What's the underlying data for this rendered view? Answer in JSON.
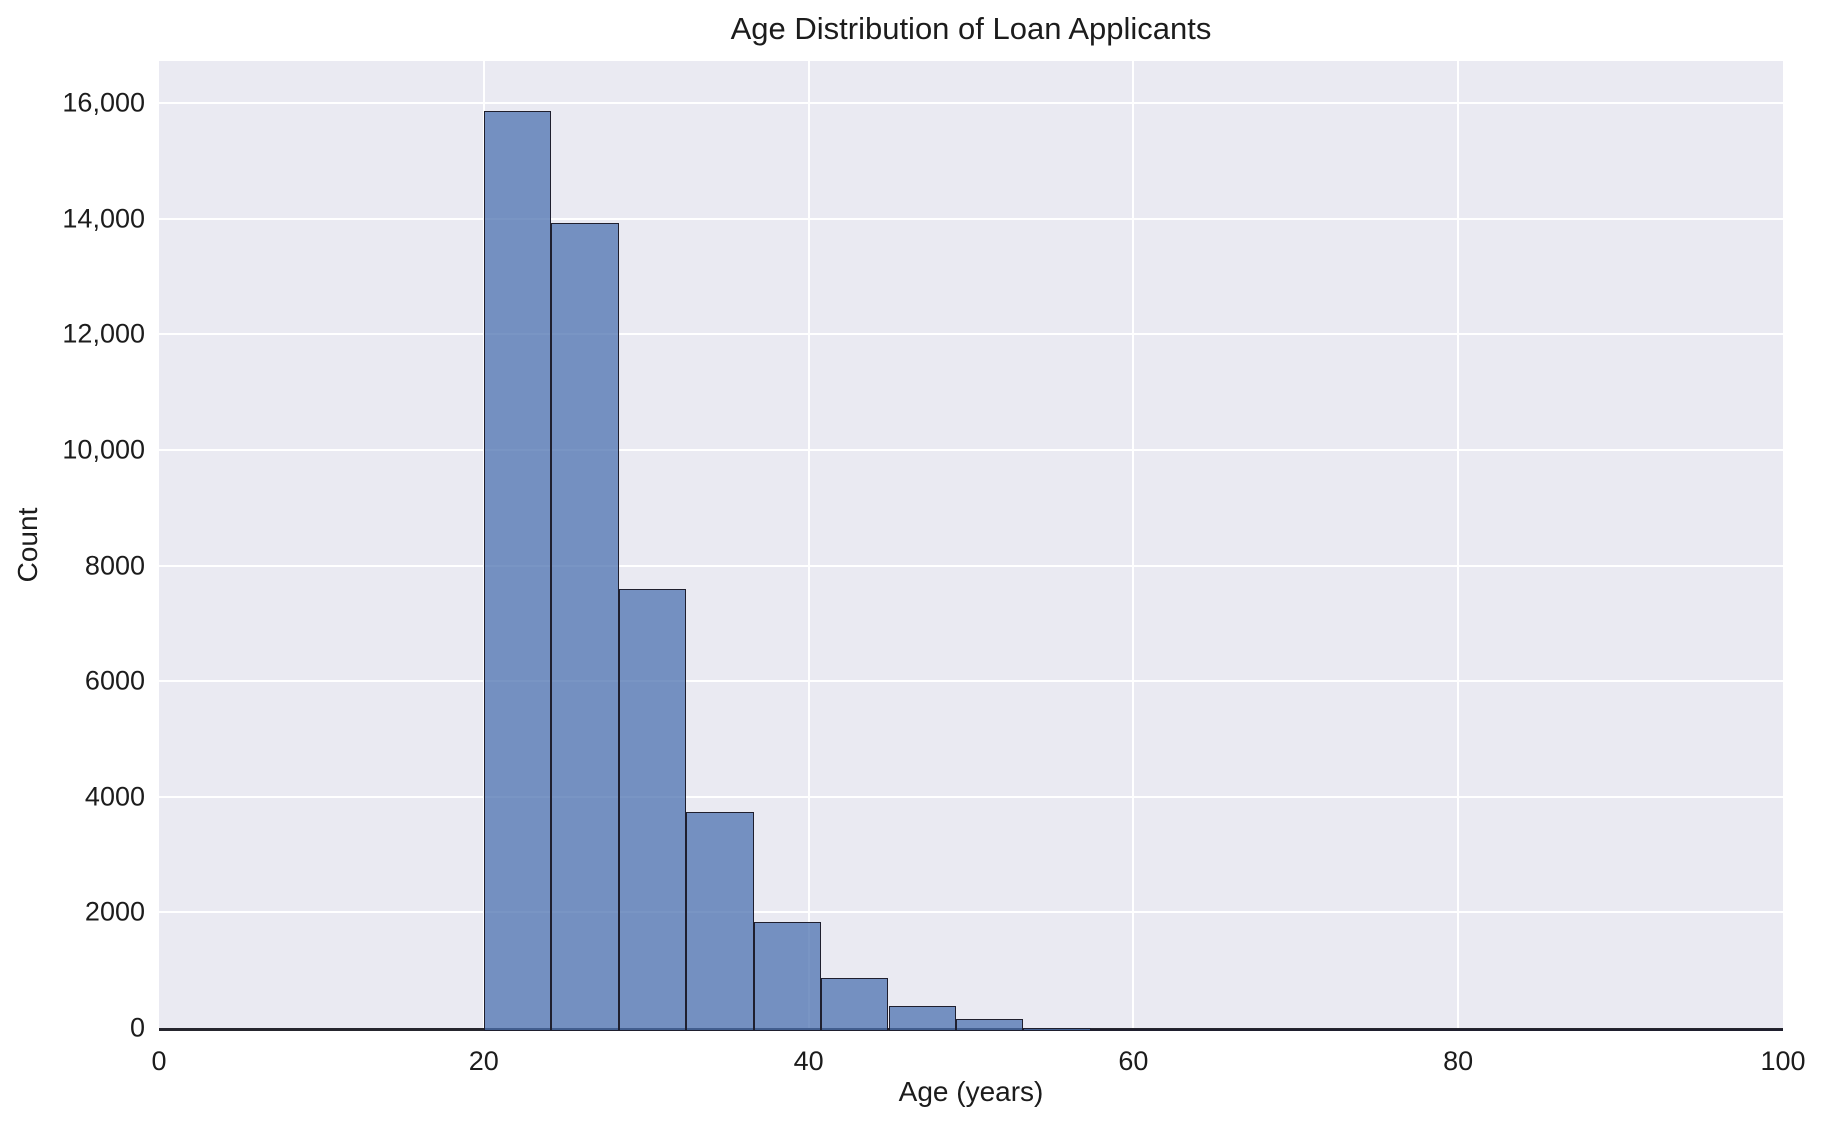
{
  "chart_data": {
    "type": "bar",
    "variant": "histogram",
    "title": "Age Distribution of Loan Applicants",
    "xlabel": "Age (years)",
    "ylabel": "Count",
    "bin_edges": [
      20,
      24.15,
      28.31,
      32.46,
      36.62,
      40.77,
      44.92,
      49.08,
      53.23,
      57.38,
      61.54,
      65.69,
      69.85,
      74.0,
      78.15,
      82.31,
      86.46,
      90.62,
      94.77,
      100
    ],
    "counts": [
      15920,
      13980,
      7650,
      3790,
      1890,
      920,
      430,
      215,
      60,
      30,
      12,
      8,
      4,
      2,
      2,
      1,
      1,
      1,
      1
    ],
    "xlim": [
      0,
      100
    ],
    "ylim": [
      0,
      16730
    ],
    "grid": true,
    "legend": false,
    "x_ticks": [
      {
        "value": 0,
        "label": "0"
      },
      {
        "value": 20,
        "label": "20"
      },
      {
        "value": 40,
        "label": "40"
      },
      {
        "value": 60,
        "label": "60"
      },
      {
        "value": 80,
        "label": "80"
      },
      {
        "value": 100,
        "label": "100"
      }
    ],
    "y_ticks": [
      {
        "value": 0,
        "label": "0"
      },
      {
        "value": 2000,
        "label": "2000"
      },
      {
        "value": 4000,
        "label": "4000"
      },
      {
        "value": 6000,
        "label": "6000"
      },
      {
        "value": 8000,
        "label": "8000"
      },
      {
        "value": 10000,
        "label": "10,000"
      },
      {
        "value": 12000,
        "label": "12,000"
      },
      {
        "value": 14000,
        "label": "14,000"
      },
      {
        "value": 16000,
        "label": "16,000"
      }
    ]
  },
  "style": {
    "figure_background": "#ffffff",
    "plot_background": "#eaeaf2",
    "gridline_color": "#ffffff",
    "bar_fill": "rgba(76,114,176,0.75)",
    "bar_edge": "#1f1f2e",
    "axis_spine": "#26262e",
    "text_color": "#1c1c1c"
  }
}
